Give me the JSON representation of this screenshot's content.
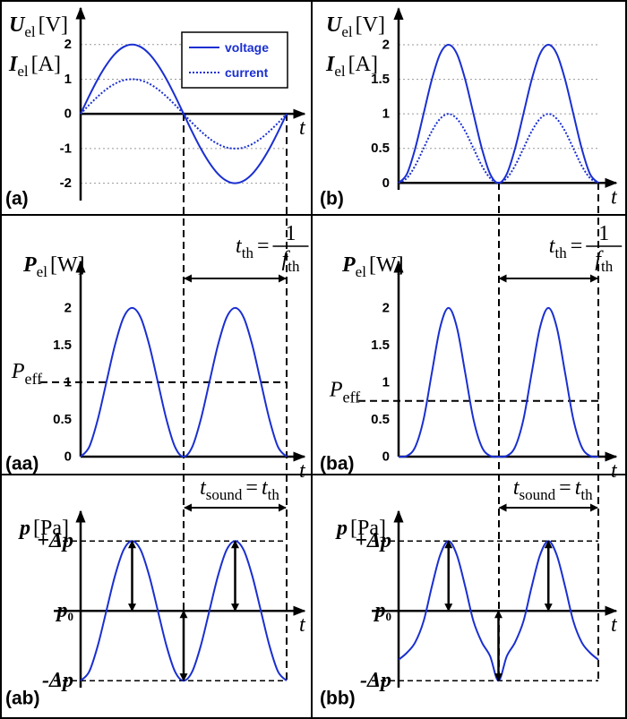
{
  "chart_data": [
    {
      "type": "line",
      "label": "(a)",
      "xlabel": "t",
      "ylabel": [
        {
          "symbol": "U",
          "sub": "el",
          "unit": "[V]"
        },
        {
          "symbol": "I",
          "sub": "el",
          "unit": "[A]"
        }
      ],
      "x": [
        0,
        0.0417,
        0.0833,
        0.125,
        0.1667,
        0.2083,
        0.25,
        0.2917,
        0.3333,
        0.375,
        0.4167,
        0.4583,
        0.5,
        0.5417,
        0.5833,
        0.625,
        0.6667,
        0.7083,
        0.75,
        0.7917,
        0.8333,
        0.875,
        0.9167,
        0.9583,
        1
      ],
      "xlim": [
        0,
        1
      ],
      "ylim": [
        -2.5,
        3
      ],
      "yticks": [
        -2,
        -1,
        0,
        1,
        2
      ],
      "grid": "dotted",
      "legend": "upper right",
      "series": [
        {
          "name": "voltage",
          "color": "#1a2fd1",
          "style": "solid",
          "values": [
            0,
            0.52,
            1,
            1.41,
            1.73,
            1.93,
            2,
            1.93,
            1.73,
            1.41,
            1,
            0.52,
            0,
            -0.52,
            -1,
            -1.41,
            -1.73,
            -1.93,
            -2,
            -1.93,
            -1.73,
            -1.41,
            -1,
            -0.52,
            0
          ]
        },
        {
          "name": "current",
          "color": "#1a2fd1",
          "style": "dotted",
          "values": [
            0,
            0.26,
            0.5,
            0.71,
            0.87,
            0.97,
            1,
            0.97,
            0.87,
            0.71,
            0.5,
            0.26,
            0,
            -0.26,
            -0.5,
            -0.71,
            -0.87,
            -0.97,
            -1,
            -0.97,
            -0.87,
            -0.71,
            -0.5,
            -0.26,
            0
          ]
        }
      ]
    },
    {
      "type": "line",
      "label": "(b)",
      "xlabel": "t",
      "ylabel": [
        {
          "symbol": "U",
          "sub": "el",
          "unit": "[V]"
        },
        {
          "symbol": "I",
          "sub": "el",
          "unit": "[A]"
        }
      ],
      "x": [
        0,
        0.0417,
        0.0833,
        0.125,
        0.1667,
        0.2083,
        0.25,
        0.2917,
        0.3333,
        0.375,
        0.4167,
        0.4583,
        0.5,
        0.5417,
        0.5833,
        0.625,
        0.6667,
        0.7083,
        0.75,
        0.7917,
        0.8333,
        0.875,
        0.9167,
        0.9583,
        1
      ],
      "xlim": [
        0,
        1
      ],
      "ylim": [
        -0.1,
        2.5
      ],
      "yticks": [
        0,
        0.5,
        1,
        1.5,
        2
      ],
      "grid": "dotted",
      "series": [
        {
          "color": "#1a2fd1",
          "style": "solid",
          "values": [
            0,
            0.13,
            0.5,
            1,
            1.5,
            1.87,
            2,
            1.87,
            1.5,
            1,
            0.5,
            0.13,
            0,
            0.13,
            0.5,
            1,
            1.5,
            1.87,
            2,
            1.87,
            1.5,
            1,
            0.5,
            0.13,
            0
          ]
        },
        {
          "color": "#1a2fd1",
          "style": "dotted",
          "values": [
            0,
            0.07,
            0.25,
            0.5,
            0.75,
            0.93,
            1,
            0.93,
            0.75,
            0.5,
            0.25,
            0.07,
            0,
            0.07,
            0.25,
            0.5,
            0.75,
            0.93,
            1,
            0.93,
            0.75,
            0.5,
            0.25,
            0.07,
            0
          ]
        }
      ]
    },
    {
      "type": "line",
      "label": "(aa)",
      "xlabel": "t",
      "ylabel": [
        {
          "symbol": "P",
          "sub": "el",
          "unit": "[W]"
        }
      ],
      "x": [
        0,
        0.0417,
        0.0833,
        0.125,
        0.1667,
        0.2083,
        0.25,
        0.2917,
        0.3333,
        0.375,
        0.4167,
        0.4583,
        0.5,
        0.5417,
        0.5833,
        0.625,
        0.6667,
        0.7083,
        0.75,
        0.7917,
        0.8333,
        0.875,
        0.9167,
        0.9583,
        1
      ],
      "xlim": [
        0,
        1
      ],
      "ylim": [
        0,
        2.6
      ],
      "yticks": [
        0,
        0.5,
        1,
        1.5,
        2
      ],
      "reference": {
        "value": 1,
        "symbol": "P",
        "sub": "eff"
      },
      "period": {
        "span": [
          0.5,
          1
        ],
        "symbol": "t",
        "sub": "th",
        "eq": "=",
        "num": "1",
        "den": "f",
        "den_sub": "th"
      },
      "series": [
        {
          "color": "#1a2fd1",
          "style": "solid",
          "values": [
            0,
            0.13,
            0.5,
            1,
            1.5,
            1.87,
            2,
            1.87,
            1.5,
            1,
            0.5,
            0.13,
            0,
            0.13,
            0.5,
            1,
            1.5,
            1.87,
            2,
            1.87,
            1.5,
            1,
            0.5,
            0.13,
            0
          ]
        }
      ]
    },
    {
      "type": "line",
      "label": "(ba)",
      "xlabel": "t",
      "ylabel": [
        {
          "symbol": "P",
          "sub": "el",
          "unit": "[W]"
        }
      ],
      "x": [
        0,
        0.0417,
        0.0833,
        0.125,
        0.1667,
        0.2083,
        0.25,
        0.2917,
        0.3333,
        0.375,
        0.4167,
        0.4583,
        0.5,
        0.5417,
        0.5833,
        0.625,
        0.6667,
        0.7083,
        0.75,
        0.7917,
        0.8333,
        0.875,
        0.9167,
        0.9583,
        1
      ],
      "xlim": [
        0,
        1
      ],
      "ylim": [
        0,
        2.6
      ],
      "yticks": [
        0,
        0.5,
        1,
        1.5,
        2
      ],
      "reference": {
        "value": 0.75,
        "symbol": "P",
        "sub": "eff"
      },
      "period": {
        "span": [
          0.5,
          1
        ],
        "symbol": "t",
        "sub": "th",
        "eq": "=",
        "num": "1",
        "den": "f",
        "den_sub": "th"
      },
      "series": [
        {
          "color": "#1a2fd1",
          "style": "solid",
          "values": [
            0,
            0.01,
            0.13,
            0.5,
            1.13,
            1.74,
            2,
            1.74,
            1.13,
            0.5,
            0.13,
            0.01,
            0,
            0.01,
            0.13,
            0.5,
            1.13,
            1.74,
            2,
            1.74,
            1.13,
            0.5,
            0.13,
            0.01,
            0
          ]
        }
      ]
    },
    {
      "type": "line",
      "label": "(ab)",
      "xlabel": "t",
      "ylabel": [
        {
          "symbol": "p",
          "unit": "[Pa]"
        }
      ],
      "x": [
        0,
        0.0417,
        0.0833,
        0.125,
        0.1667,
        0.2083,
        0.25,
        0.2917,
        0.3333,
        0.375,
        0.4167,
        0.4583,
        0.5,
        0.5417,
        0.5833,
        0.625,
        0.6667,
        0.7083,
        0.75,
        0.7917,
        0.8333,
        0.875,
        0.9167,
        0.9583,
        1
      ],
      "xlim": [
        0,
        1
      ],
      "ylim": [
        -1.1,
        1.4
      ],
      "yticks": [
        {
          "value": -1,
          "label": "-Δp"
        },
        {
          "value": 0,
          "label": "p",
          "sub": "0"
        },
        {
          "value": 1,
          "label": "+Δp"
        }
      ],
      "grid": "dashed",
      "period": {
        "span": [
          0.5,
          1
        ],
        "symbol": "t",
        "sub": "sound",
        "eq": "=",
        "rhs": "t",
        "rhs_sub": "th"
      },
      "arrows": [
        {
          "x": 0.25,
          "from": 0,
          "to": 1
        },
        {
          "x": 0.5,
          "from": 0,
          "to": -1
        },
        {
          "x": 0.75,
          "from": 0,
          "to": 1
        }
      ],
      "series": [
        {
          "color": "#1a2fd1",
          "style": "solid",
          "values": [
            -1,
            -0.87,
            -0.5,
            0,
            0.5,
            0.87,
            1,
            0.87,
            0.5,
            0,
            -0.5,
            -0.87,
            -1,
            -0.87,
            -0.5,
            0,
            0.5,
            0.87,
            1,
            0.87,
            0.5,
            0,
            -0.5,
            -0.87,
            -1
          ]
        }
      ]
    },
    {
      "type": "line",
      "label": "(bb)",
      "xlabel": "t",
      "ylabel": [
        {
          "symbol": "p",
          "unit": "[Pa]"
        }
      ],
      "x": [
        0,
        0.0417,
        0.0833,
        0.125,
        0.1667,
        0.2083,
        0.25,
        0.2917,
        0.3333,
        0.375,
        0.4167,
        0.4583,
        0.5,
        0.5417,
        0.5833,
        0.625,
        0.6667,
        0.7083,
        0.75,
        0.7917,
        0.8333,
        0.875,
        0.9167,
        0.9583,
        1
      ],
      "xlim": [
        0,
        1
      ],
      "ylim": [
        -1.1,
        1.4
      ],
      "yticks": [
        {
          "value": -1,
          "label": "-Δp"
        },
        {
          "value": 0,
          "label": "p",
          "sub": "0"
        },
        {
          "value": 1,
          "label": "+Δp"
        }
      ],
      "grid": "dashed",
      "period": {
        "span": [
          0.5,
          1
        ],
        "symbol": "t",
        "sub": "sound",
        "eq": "=",
        "rhs": "t",
        "rhs_sub": "th"
      },
      "arrows": [
        {
          "x": 0.25,
          "from": 0,
          "to": 1
        },
        {
          "x": 0.5,
          "from": 0,
          "to": -1
        },
        {
          "x": 0.75,
          "from": 0,
          "to": 1
        }
      ],
      "series": [
        {
          "color": "#1a2fd1",
          "style": "solid",
          "values": [
            -0.7,
            -0.6,
            -0.45,
            -0.15,
            0.35,
            0.8,
            1,
            0.8,
            0.35,
            -0.15,
            -0.45,
            -0.65,
            -1,
            -0.65,
            -0.45,
            -0.15,
            0.35,
            0.8,
            1,
            0.8,
            0.35,
            -0.15,
            -0.45,
            -0.6,
            -0.7
          ]
        }
      ]
    }
  ]
}
